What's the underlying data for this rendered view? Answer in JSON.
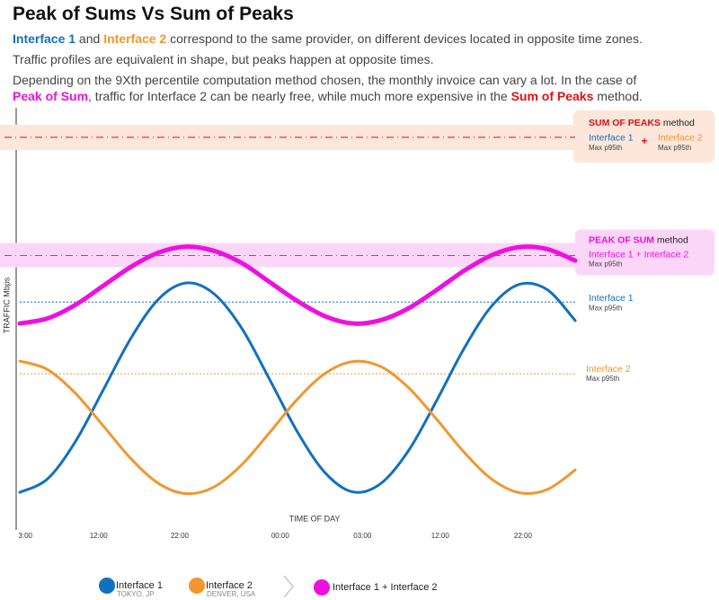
{
  "chart_data": {
    "type": "line",
    "title": "Peak of Sums Vs Sum of Peaks",
    "description": [
      [
        {
          "text": "Interface 1",
          "color": "#1170c0",
          "bold": true
        },
        {
          "text": " and "
        },
        {
          "text": "Interface 2",
          "color": "#f2962e",
          "bold": true
        },
        {
          "text": " correspond to the same provider, on different devices located in opposite time zones."
        }
      ],
      [
        {
          "text": "Traffic profiles are equivalent in shape, but peaks happen at opposite times."
        }
      ],
      [
        {
          "text": "Depending on the 9Xth percentile computation method chosen, the monthly invoice can vary a lot. In the case of "
        },
        {
          "text": "Peak of Sum",
          "color": "#ee10e0",
          "bold": true
        },
        {
          "text": ", traffic for Interface 2 can be nearly free, while much more expensive in the "
        },
        {
          "text": "Sum of Peaks",
          "color": "#e01010",
          "bold": true
        },
        {
          "text": " method."
        }
      ]
    ],
    "x_label": "TIME OF DAY",
    "y_label": "TRAFFIC Mbps",
    "xlim": [
      0,
      100
    ],
    "ylim": [
      0,
      100
    ],
    "xticks": [
      {
        "value": 1,
        "label": "3:00"
      },
      {
        "value": 14.2,
        "label": "12:00"
      },
      {
        "value": 28.8,
        "label": "22:00"
      },
      {
        "value": 46.9,
        "label": "00:00"
      },
      {
        "value": 61.7,
        "label": "03:00"
      },
      {
        "value": 75.7,
        "label": "12:00"
      },
      {
        "value": 90.6,
        "label": "22:00"
      }
    ],
    "x": [
      0,
      5,
      10,
      15,
      20,
      25,
      30,
      35,
      40,
      45,
      50,
      55,
      60,
      65,
      70,
      75,
      80,
      85,
      90,
      95,
      100
    ],
    "series": [
      {
        "name": "Interface 1",
        "location": "TOKYO, JP",
        "color": "#1170c0",
        "values": [
          8.9,
          12.1,
          20.9,
          33.1,
          45.4,
          54.7,
          58.5,
          55.9,
          47.7,
          35.6,
          23.2,
          13.5,
          9.0,
          11.0,
          18.8,
          30.5,
          43.0,
          53.1,
          58.2,
          56.9,
          49.6
        ]
      },
      {
        "name": "Interface 2",
        "location": "DENVER, USA",
        "color": "#f2962e",
        "values": [
          40.0,
          38.0,
          32.4,
          24.7,
          16.9,
          11.0,
          8.6,
          10.2,
          15.5,
          23.1,
          31.0,
          37.1,
          39.9,
          38.7,
          33.7,
          26.3,
          18.4,
          12.0,
          8.8,
          9.6,
          14.2
        ]
      },
      {
        "name": "Interface 1 + Interface 2",
        "color": "#ee10e0",
        "values": [
          48.9,
          50.1,
          53.3,
          57.8,
          62.3,
          65.7,
          67.1,
          66.1,
          63.2,
          58.7,
          54.2,
          50.6,
          48.9,
          49.7,
          52.5,
          56.8,
          61.4,
          65.1,
          67.0,
          66.5,
          63.8
        ]
      }
    ],
    "annotations": [
      {
        "value": 93,
        "color": "#e01010",
        "dash": "8 4 1 4",
        "band": "#fde6da",
        "title": "SUM OF PEAKS",
        "suffix": "method",
        "joiner": "+",
        "items": [
          {
            "name": "Interface 1",
            "note": "Max p95th",
            "color": "#1170c0"
          },
          {
            "name": "Interface 2",
            "note": "Max p95th",
            "color": "#f2962e"
          }
        ]
      },
      {
        "value": 65,
        "color": "#ee10e0",
        "dash": "8 4 1 4",
        "band": "#fcd6f9",
        "title": "PEAK OF SUM",
        "suffix": "method",
        "items": [
          {
            "name": "Interface 1 + Interface 2",
            "note": "Max p95th",
            "color": "#ee10e0"
          }
        ]
      },
      {
        "value": 54,
        "color": "#1170c0",
        "dash": "2 2",
        "items": [
          {
            "name": "Interface 1",
            "note": "Max p95th",
            "color": "#1170c0"
          }
        ]
      },
      {
        "value": 37,
        "color": "#f2962e",
        "dash": "2 2",
        "items": [
          {
            "name": "Interface 2",
            "note": "Max p95th",
            "color": "#f2962e"
          }
        ]
      }
    ]
  }
}
